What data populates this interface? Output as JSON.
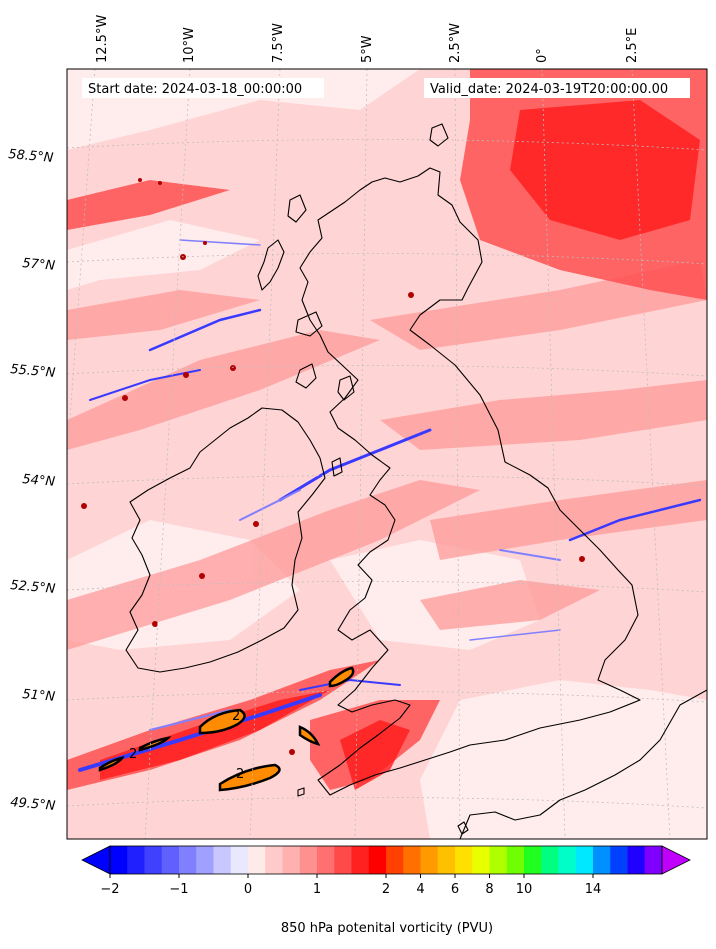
{
  "header": {
    "start_date": "Start date: 2024-03-18_00:00:00",
    "valid_date": "Valid_date: 2024-03-19T20:00:00.00"
  },
  "map": {
    "longitude_labels": [
      "12.5°W",
      "10°W",
      "7.5°W",
      "5°W",
      "2.5°W",
      "0°",
      "2.5°E"
    ],
    "latitude_labels": [
      "58.5°N",
      "57°N",
      "55.5°N",
      "54°N",
      "52.5°N",
      "51°N",
      "49.5°N"
    ],
    "coastline_color": "#000000",
    "gridline_color": "#bdbdbd"
  },
  "contours": {
    "label": "2",
    "fill_color": "#ff8c00",
    "line_color": "#000000"
  },
  "colorbar": {
    "tick_labels": [
      "−2",
      "−1",
      "0",
      "1",
      "2",
      "4",
      "6",
      "8",
      "10",
      "14"
    ],
    "label": "850 hPa potenital vorticity (PVU)",
    "colors": [
      "#0000ff",
      "#2020ff",
      "#4040ff",
      "#6060ff",
      "#8080ff",
      "#a0a0ff",
      "#c8c8ff",
      "#e8e8ff",
      "#ffeaea",
      "#ffcaca",
      "#ffb0b0",
      "#ff9090",
      "#ff7070",
      "#ff4a4a",
      "#ff2020",
      "#ff0000",
      "#ff4000",
      "#ff7000",
      "#ff9a00",
      "#ffc000",
      "#ffe000",
      "#e8ff00",
      "#b0ff00",
      "#70ff00",
      "#20ff20",
      "#00ff80",
      "#00ffc8",
      "#00e8ff",
      "#0090ff",
      "#0040ff",
      "#2000ff",
      "#8000ff"
    ],
    "under_color": "#0000ff",
    "over_color": "#c000ff"
  }
}
